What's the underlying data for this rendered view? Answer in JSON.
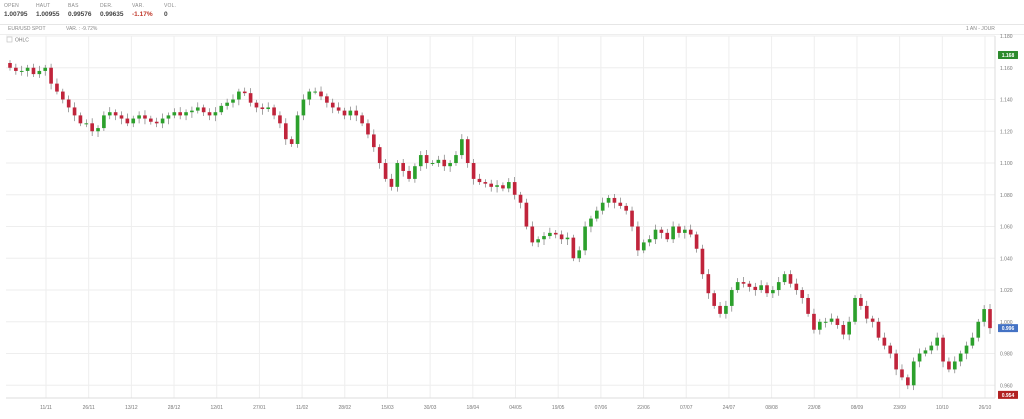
{
  "quote_bar": {
    "stats": [
      {
        "label": "OPEN",
        "value": "1.00795"
      },
      {
        "label": "HAUT",
        "value": "1.00955"
      },
      {
        "label": "BAS",
        "value": "0.99576"
      },
      {
        "label": "DER.",
        "value": "0.99635"
      },
      {
        "label": "VAR.",
        "value": "-1.17%",
        "negative": true
      },
      {
        "label": "VOL.",
        "value": "0"
      }
    ]
  },
  "chart_header": {
    "instrument": "EUR/USD SPOT",
    "variation": "VAR. : -9.72%",
    "period": "1 AN - JOUR",
    "ohlc_toggle": "OHLC"
  },
  "colors": {
    "up": "#2ca02c",
    "down": "#c0243b",
    "grid": "#eeeeee",
    "wick": "#666666",
    "last_tag": "#4472c4",
    "high_tag": "#2e8b2e",
    "low_tag": "#b22222"
  },
  "chart_data": {
    "type": "candlestick",
    "title": "EUR/USD SPOT",
    "xlabel": "",
    "ylabel": "",
    "ylim": [
      0.952,
      1.18
    ],
    "y_ticks": [
      "1.180",
      "1.160",
      "1.140",
      "1.120",
      "1.100",
      "1.080",
      "1.060",
      "1.040",
      "1.020",
      "1.000",
      "0.980",
      "0.960"
    ],
    "y_tick_values": [
      1.18,
      1.16,
      1.14,
      1.12,
      1.1,
      1.08,
      1.06,
      1.04,
      1.02,
      1.0,
      0.98,
      0.96
    ],
    "x_ticks": [
      "11/11",
      "26/11",
      "13/12",
      "28/12",
      "12/01",
      "27/01",
      "11/02",
      "28/02",
      "15/03",
      "30/03",
      "18/04",
      "04/05",
      "19/05",
      "07/06",
      "22/06",
      "07/07",
      "24/07",
      "08/08",
      "23/08",
      "08/09",
      "23/09",
      "10/10",
      "26/10"
    ],
    "price_tags": {
      "high": "1.168",
      "last": "0.996",
      "low": "0.954"
    },
    "price_tag_values": {
      "high": 1.168,
      "last": 0.996,
      "low": 0.954
    },
    "closes": [
      1.16,
      1.158,
      1.158,
      1.16,
      1.156,
      1.158,
      1.16,
      1.15,
      1.145,
      1.14,
      1.135,
      1.13,
      1.125,
      1.125,
      1.12,
      1.122,
      1.13,
      1.132,
      1.13,
      1.128,
      1.125,
      1.128,
      1.13,
      1.128,
      1.126,
      1.125,
      1.128,
      1.13,
      1.132,
      1.13,
      1.132,
      1.133,
      1.135,
      1.132,
      1.13,
      1.132,
      1.136,
      1.138,
      1.14,
      1.145,
      1.144,
      1.138,
      1.135,
      1.134,
      1.135,
      1.13,
      1.125,
      1.115,
      1.112,
      1.13,
      1.14,
      1.145,
      1.145,
      1.142,
      1.138,
      1.135,
      1.133,
      1.13,
      1.133,
      1.13,
      1.125,
      1.118,
      1.11,
      1.1,
      1.09,
      1.085,
      1.1,
      1.095,
      1.09,
      1.098,
      1.105,
      1.1,
      1.1,
      1.102,
      1.098,
      1.1,
      1.105,
      1.115,
      1.1,
      1.09,
      1.088,
      1.087,
      1.085,
      1.086,
      1.084,
      1.088,
      1.08,
      1.075,
      1.06,
      1.05,
      1.052,
      1.054,
      1.056,
      1.055,
      1.052,
      1.053,
      1.04,
      1.045,
      1.06,
      1.065,
      1.07,
      1.075,
      1.078,
      1.075,
      1.073,
      1.07,
      1.06,
      1.045,
      1.05,
      1.052,
      1.058,
      1.056,
      1.052,
      1.06,
      1.056,
      1.058,
      1.055,
      1.046,
      1.03,
      1.018,
      1.01,
      1.005,
      1.01,
      1.02,
      1.025,
      1.024,
      1.022,
      1.02,
      1.023,
      1.018,
      1.02,
      1.025,
      1.03,
      1.024,
      1.02,
      1.015,
      1.005,
      0.995,
      1,
      1,
      1.002,
      0.998,
      0.992,
      1,
      1.015,
      1.01,
      1.002,
      1,
      0.99,
      0.985,
      0.98,
      0.97,
      0.965,
      0.96,
      0.975,
      0.98,
      0.982,
      0.985,
      0.99,
      0.975,
      0.97,
      0.975,
      0.98,
      0.985,
      0.99,
      1,
      1.008,
      0.996
    ]
  }
}
